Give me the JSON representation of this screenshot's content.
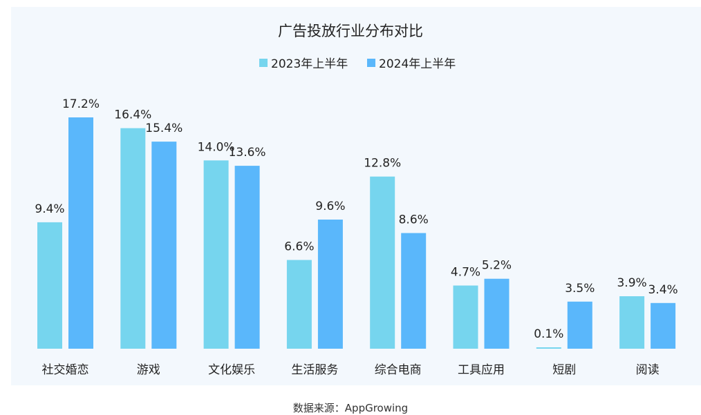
{
  "chart_data": {
    "type": "bar",
    "title": "广告投放行业分布对比",
    "categories": [
      "社交婚恋",
      "游戏",
      "文化娱乐",
      "生活服务",
      "综合电商",
      "工具应用",
      "短剧",
      "阅读"
    ],
    "series": [
      {
        "name": "2023年上半年",
        "color": "#76d5ee",
        "values": [
          9.4,
          16.4,
          14.0,
          6.6,
          12.8,
          4.7,
          0.1,
          3.9
        ],
        "labels": [
          "9.4%",
          "16.4%",
          "14.0%",
          "6.6%",
          "12.8%",
          "4.7%",
          "0.1%",
          "3.9%"
        ]
      },
      {
        "name": "2024年上半年",
        "color": "#5ab7fb",
        "values": [
          17.2,
          15.4,
          13.6,
          9.6,
          8.6,
          5.2,
          3.5,
          3.4
        ],
        "labels": [
          "17.2%",
          "15.4%",
          "13.6%",
          "9.6%",
          "8.6%",
          "5.2%",
          "3.5%",
          "3.4%"
        ]
      }
    ],
    "ylim": [
      0,
      17.2
    ],
    "legend_position": "top-center",
    "grid": false
  },
  "source_text": "数据来源：AppGrowing"
}
